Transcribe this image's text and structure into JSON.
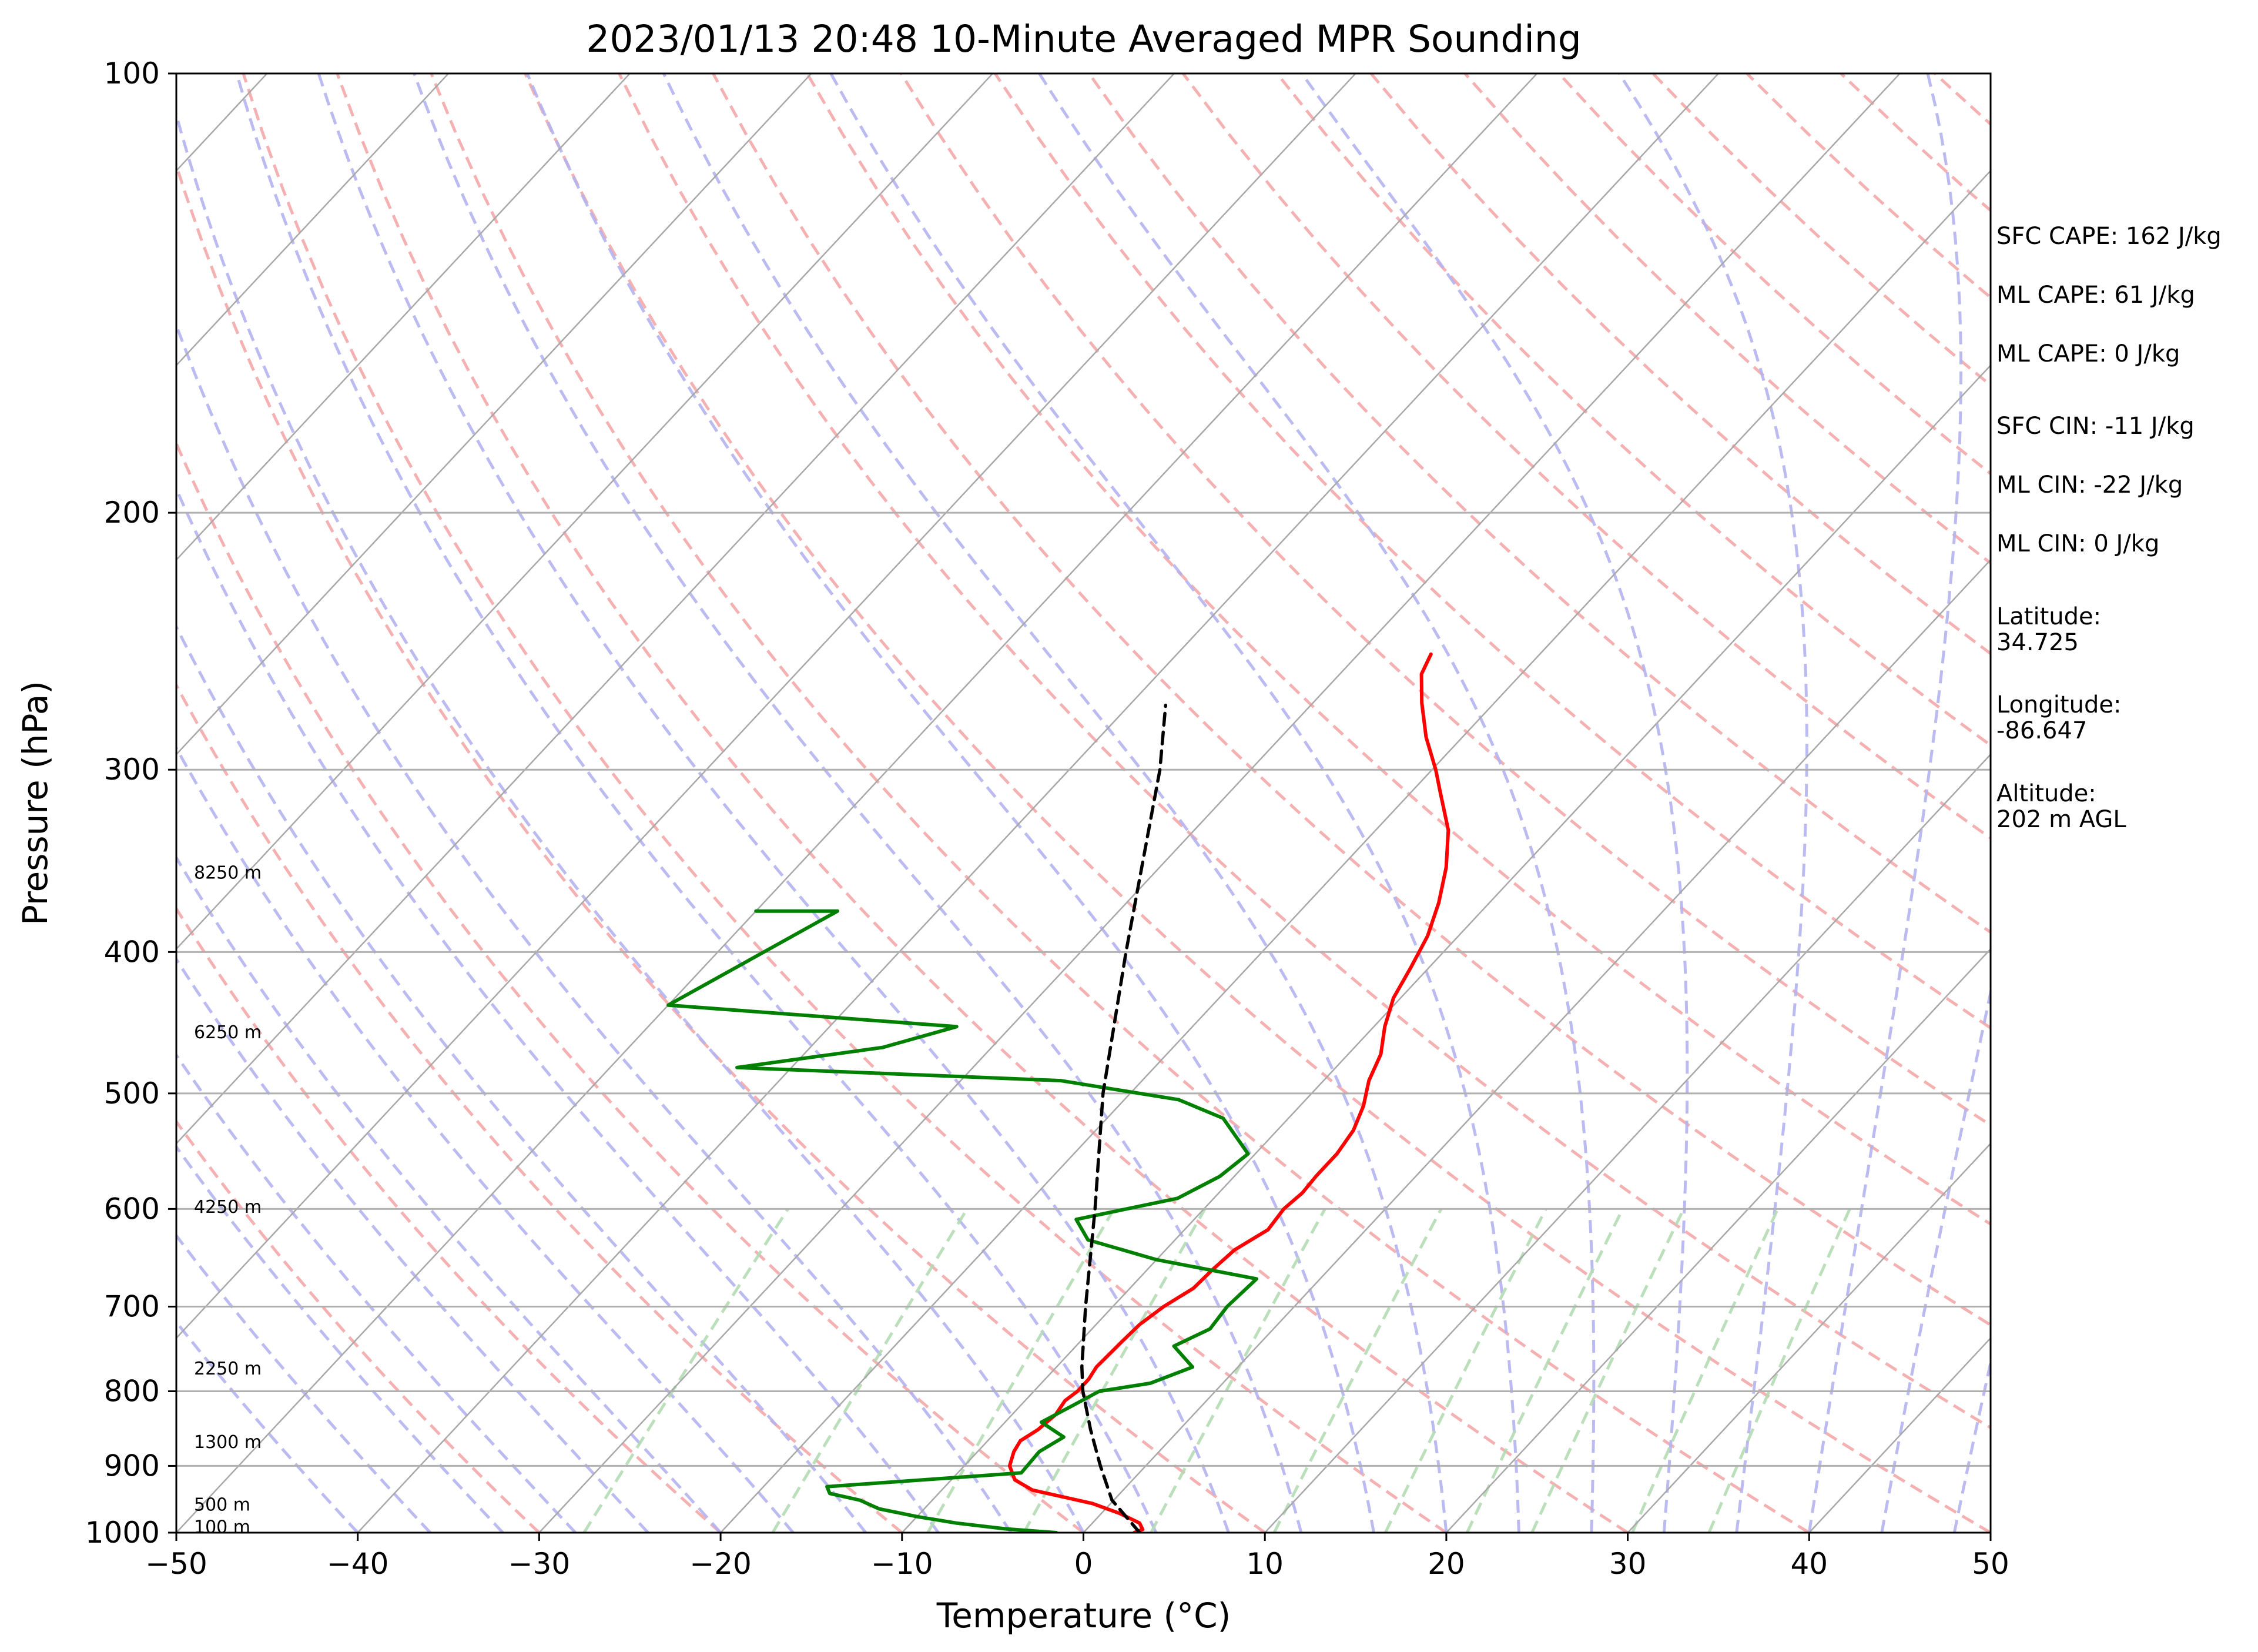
{
  "chart_data": {
    "type": "skew-t log-p sounding",
    "title": "2023/01/13 20:48 10-Minute Averaged MPR Sounding",
    "xlabel": "Temperature (°C)",
    "ylabel": "Pressure (hPa)",
    "xlim": [
      -50,
      50
    ],
    "ylim": [
      1000,
      100
    ],
    "y_scale": "log",
    "x_ticks": [
      "−50",
      "−40",
      "−30",
      "−20",
      "−10",
      "0",
      "10",
      "20",
      "30",
      "40",
      "50"
    ],
    "x_tick_values": [
      -50,
      -40,
      -30,
      -20,
      -10,
      0,
      10,
      20,
      30,
      40,
      50
    ],
    "y_ticks": [
      "100",
      "200",
      "300",
      "400",
      "500",
      "600",
      "700",
      "800",
      "900",
      "1000"
    ],
    "y_tick_values": [
      100,
      200,
      300,
      400,
      500,
      600,
      700,
      800,
      900,
      1000
    ],
    "grid": true,
    "background_lines": {
      "isotherms_skewed": {
        "color": "#a8a8a8"
      },
      "dry_adiabats": {
        "color": "#f4a8a8",
        "style": "dashed"
      },
      "moist_adiabats": {
        "color": "#b4b4f0",
        "style": "dashed"
      },
      "mixing_ratio_lines": {
        "color": "#b4dcb4",
        "style": "dashed"
      }
    },
    "series": [
      {
        "color": "#ff0000",
        "points": [
          [
            1000,
            2.8
          ],
          [
            995,
            3.1
          ],
          [
            985,
            2.6
          ],
          [
            970,
            1.0
          ],
          [
            955,
            -1.0
          ],
          [
            945,
            -3.0
          ],
          [
            935,
            -5.0
          ],
          [
            920,
            -6.5
          ],
          [
            900,
            -7.5
          ],
          [
            880,
            -8.0
          ],
          [
            865,
            -8.2
          ],
          [
            850,
            -7.8
          ],
          [
            830,
            -7.6
          ],
          [
            812,
            -7.8
          ],
          [
            800,
            -7.6
          ],
          [
            785,
            -7.6
          ],
          [
            770,
            -7.8
          ],
          [
            740,
            -7.7
          ],
          [
            720,
            -7.6
          ],
          [
            700,
            -7.2
          ],
          [
            680,
            -6.5
          ],
          [
            660,
            -6.4
          ],
          [
            640,
            -6.2
          ],
          [
            620,
            -5.4
          ],
          [
            600,
            -5.6
          ],
          [
            585,
            -5.4
          ],
          [
            570,
            -5.5
          ],
          [
            550,
            -5.5
          ],
          [
            530,
            -5.8
          ],
          [
            510,
            -6.5
          ],
          [
            490,
            -7.5
          ],
          [
            470,
            -8.2
          ],
          [
            450,
            -9.4
          ],
          [
            430,
            -10.4
          ],
          [
            410,
            -11.0
          ],
          [
            390,
            -11.7
          ],
          [
            370,
            -12.8
          ],
          [
            350,
            -14.2
          ],
          [
            330,
            -16.0
          ],
          [
            310,
            -18.5
          ],
          [
            300,
            -19.8
          ],
          [
            285,
            -22.0
          ],
          [
            270,
            -24.0
          ],
          [
            258,
            -25.5
          ],
          [
            250,
            -26.0
          ]
        ]
      },
      {
        "color": "#008000",
        "points": [
          [
            1000,
            -1.5
          ],
          [
            994,
            -4.5
          ],
          [
            985,
            -7.5
          ],
          [
            975,
            -10.0
          ],
          [
            963,
            -12.5
          ],
          [
            950,
            -14.0
          ],
          [
            940,
            -16.0
          ],
          [
            930,
            -16.5
          ],
          [
            910,
            -6.5
          ],
          [
            880,
            -6.6
          ],
          [
            860,
            -6.0
          ],
          [
            840,
            -8.0
          ],
          [
            820,
            -7.2
          ],
          [
            800,
            -6.4
          ],
          [
            790,
            -4.0
          ],
          [
            770,
            -2.5
          ],
          [
            745,
            -4.6
          ],
          [
            725,
            -3.5
          ],
          [
            700,
            -3.7
          ],
          [
            670,
            -3.5
          ],
          [
            650,
            -10.0
          ],
          [
            630,
            -14.8
          ],
          [
            610,
            -16.5
          ],
          [
            590,
            -12.0
          ],
          [
            570,
            -10.8
          ],
          [
            550,
            -10.4
          ],
          [
            520,
            -13.6
          ],
          [
            505,
            -17.0
          ],
          [
            490,
            -24.5
          ],
          [
            480,
            -43.0
          ],
          [
            465,
            -36.0
          ],
          [
            450,
            -33.0
          ],
          [
            435,
            -50.0
          ],
          [
            375,
            -45.5
          ],
          [
            375,
            -50.0
          ]
        ]
      },
      {
        "color": "#000000",
        "style": "dashed",
        "points": [
          [
            1000,
            3.1
          ],
          [
            950,
            -0.1
          ],
          [
            900,
            -2.5
          ],
          [
            850,
            -4.9
          ],
          [
            800,
            -7.3
          ],
          [
            770,
            -8.6
          ],
          [
            700,
            -11.5
          ],
          [
            600,
            -16.0
          ],
          [
            500,
            -21.5
          ],
          [
            400,
            -27.5
          ],
          [
            300,
            -35.0
          ],
          [
            271,
            -38.0
          ]
        ]
      }
    ],
    "height_labels": [
      {
        "label": "100 m",
        "pressure": 991
      },
      {
        "label": "500 m",
        "pressure": 957
      },
      {
        "label": "1300 m",
        "pressure": 867
      },
      {
        "label": "2250 m",
        "pressure": 772
      },
      {
        "label": "4250 m",
        "pressure": 598
      },
      {
        "label": "6250 m",
        "pressure": 454
      },
      {
        "label": "8250 m",
        "pressure": 353
      }
    ],
    "annotations": [
      [
        "SFC CAPE: 162 J/kg"
      ],
      [
        "ML CAPE: 61 J/kg"
      ],
      [
        "ML CAPE: 0 J/kg"
      ],
      [
        "SFC CIN: -11 J/kg"
      ],
      [
        "ML CIN: -22 J/kg"
      ],
      [
        "ML CIN: 0 J/kg"
      ],
      [
        "Latitude:",
        "34.725"
      ],
      [
        "Longitude:",
        "-86.647"
      ],
      [
        "Altitude:",
        "202 m AGL"
      ]
    ]
  }
}
